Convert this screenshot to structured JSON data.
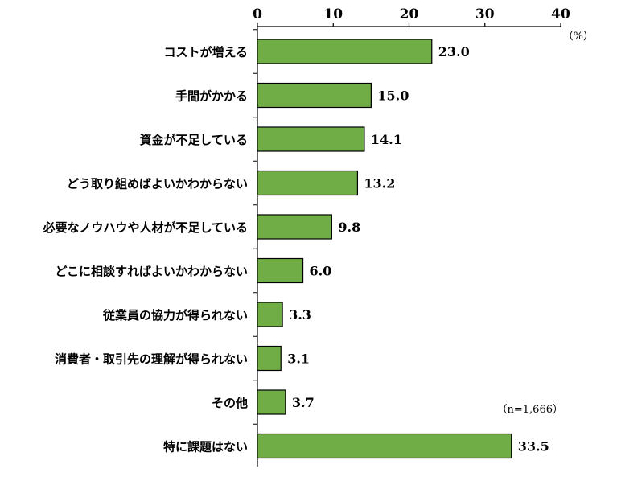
{
  "chart_data": {
    "type": "bar",
    "orientation": "horizontal",
    "categories": [
      "コストが増える",
      "手間がかかる",
      "資金が不足している",
      "どう取り組めばよいかわからない",
      "必要なノウハウや人材が不足している",
      "どこに相談すればよいかわからない",
      "従業員の協力が得られない",
      "消費者・取引先の理解が得られない",
      "その他",
      "特に課題はない"
    ],
    "values": [
      23.0,
      15.0,
      14.1,
      13.2,
      9.8,
      6.0,
      3.3,
      3.1,
      3.7,
      33.5
    ],
    "value_labels": [
      "23.0",
      "15.0",
      "14.1",
      "13.2",
      "9.8",
      "6.0",
      "3.3",
      "3.1",
      "3.7",
      "33.5"
    ],
    "xlim": [
      0,
      40
    ],
    "x_ticks": [
      "0",
      "10",
      "20",
      "30",
      "40"
    ],
    "x_tick_values": [
      0,
      10,
      20,
      30,
      40
    ],
    "axis_position": "top",
    "unit": "（%）",
    "sample_note": "（n=1,666）",
    "grid": false,
    "bar_color": "#70ad47",
    "bar_edge_color": "#000000"
  }
}
